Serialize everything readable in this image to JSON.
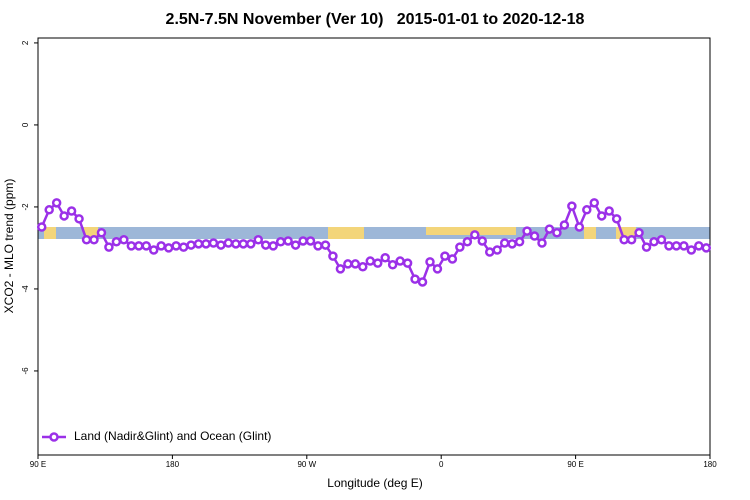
{
  "chart_data": {
    "type": "line",
    "title": "2.5N-7.5N November (Ver 10)   2015-01-01 to 2020-12-18",
    "x_label": "Longitude (deg E)",
    "y_label": "XCO2 - MLO trend (ppm)",
    "xlim": [
      90,
      540
    ],
    "ylim": [
      -8.05,
      2.12
    ],
    "xticks": [
      {
        "value": 90,
        "label": "90 E"
      },
      180,
      {
        "value": 270,
        "label": "90 W"
      },
      {
        "value": 360,
        "label": "0"
      },
      {
        "value": 450,
        "label": "90 E"
      },
      {
        "value": 540,
        "label": "180"
      }
    ],
    "yticks": [
      -6,
      -4,
      -2,
      0,
      2
    ],
    "legend": "bottom-left",
    "x": [
      92.5,
      97.5,
      102.5,
      107.5,
      112.5,
      117.5,
      122.5,
      127.5,
      132.5,
      137.5,
      142.5,
      147.5,
      152.5,
      157.5,
      162.5,
      167.5,
      172.5,
      177.5,
      182.5,
      187.5,
      192.5,
      197.5,
      202.5,
      207.5,
      212.5,
      217.5,
      222.5,
      227.5,
      232.5,
      237.5,
      242.5,
      247.5,
      252.5,
      257.5,
      262.5,
      267.5,
      272.5,
      277.5,
      282.5,
      287.5,
      292.5,
      297.5,
      302.5,
      307.5,
      312.5,
      317.5,
      322.5,
      327.5,
      332.5,
      337.5,
      342.5,
      347.5,
      352.5,
      357.5,
      362.5,
      367.5,
      372.5,
      377.5,
      382.5,
      387.5,
      392.5,
      397.5,
      402.5,
      407.5,
      412.5,
      417.5,
      422.5,
      427.5,
      432.5,
      437.5,
      442.5,
      447.5,
      452.5,
      457.5,
      462.5,
      467.5,
      472.5,
      477.5,
      482.5,
      487.5,
      492.5,
      497.5,
      502.5,
      507.5,
      512.5,
      517.5,
      522.5,
      527.5,
      532.5,
      537.5
    ],
    "series": [
      {
        "name": "Land (Nadir&Glint) and Ocean (Glint)",
        "color": "#9b30e8",
        "values": [
          -2.49,
          -2.07,
          -1.9,
          -2.22,
          -2.1,
          -2.29,
          -2.8,
          -2.8,
          -2.63,
          -2.98,
          -2.85,
          -2.8,
          -2.95,
          -2.95,
          -2.95,
          -3.05,
          -2.95,
          -3.0,
          -2.95,
          -2.98,
          -2.93,
          -2.9,
          -2.9,
          -2.88,
          -2.93,
          -2.88,
          -2.9,
          -2.9,
          -2.9,
          -2.8,
          -2.93,
          -2.95,
          -2.85,
          -2.83,
          -2.93,
          -2.83,
          -2.83,
          -2.95,
          -2.93,
          -3.2,
          -3.51,
          -3.39,
          -3.39,
          -3.46,
          -3.32,
          -3.37,
          -3.24,
          -3.41,
          -3.32,
          -3.37,
          -3.76,
          -3.83,
          -3.34,
          -3.51,
          -3.2,
          -3.27,
          -2.98,
          -2.85,
          -2.68,
          -2.83,
          -3.1,
          -3.05,
          -2.88,
          -2.9,
          -2.85,
          -2.59,
          -2.71,
          -2.88,
          -2.54,
          -2.63,
          -2.44,
          -1.98,
          -2.49,
          -2.07,
          -1.9,
          -2.22,
          -2.1,
          -2.29,
          -2.8,
          -2.8,
          -2.63,
          -2.98,
          -2.85,
          -2.8,
          -2.95,
          -2.95,
          -2.95,
          -3.05,
          -2.95,
          -3.0
        ]
      }
    ]
  }
}
